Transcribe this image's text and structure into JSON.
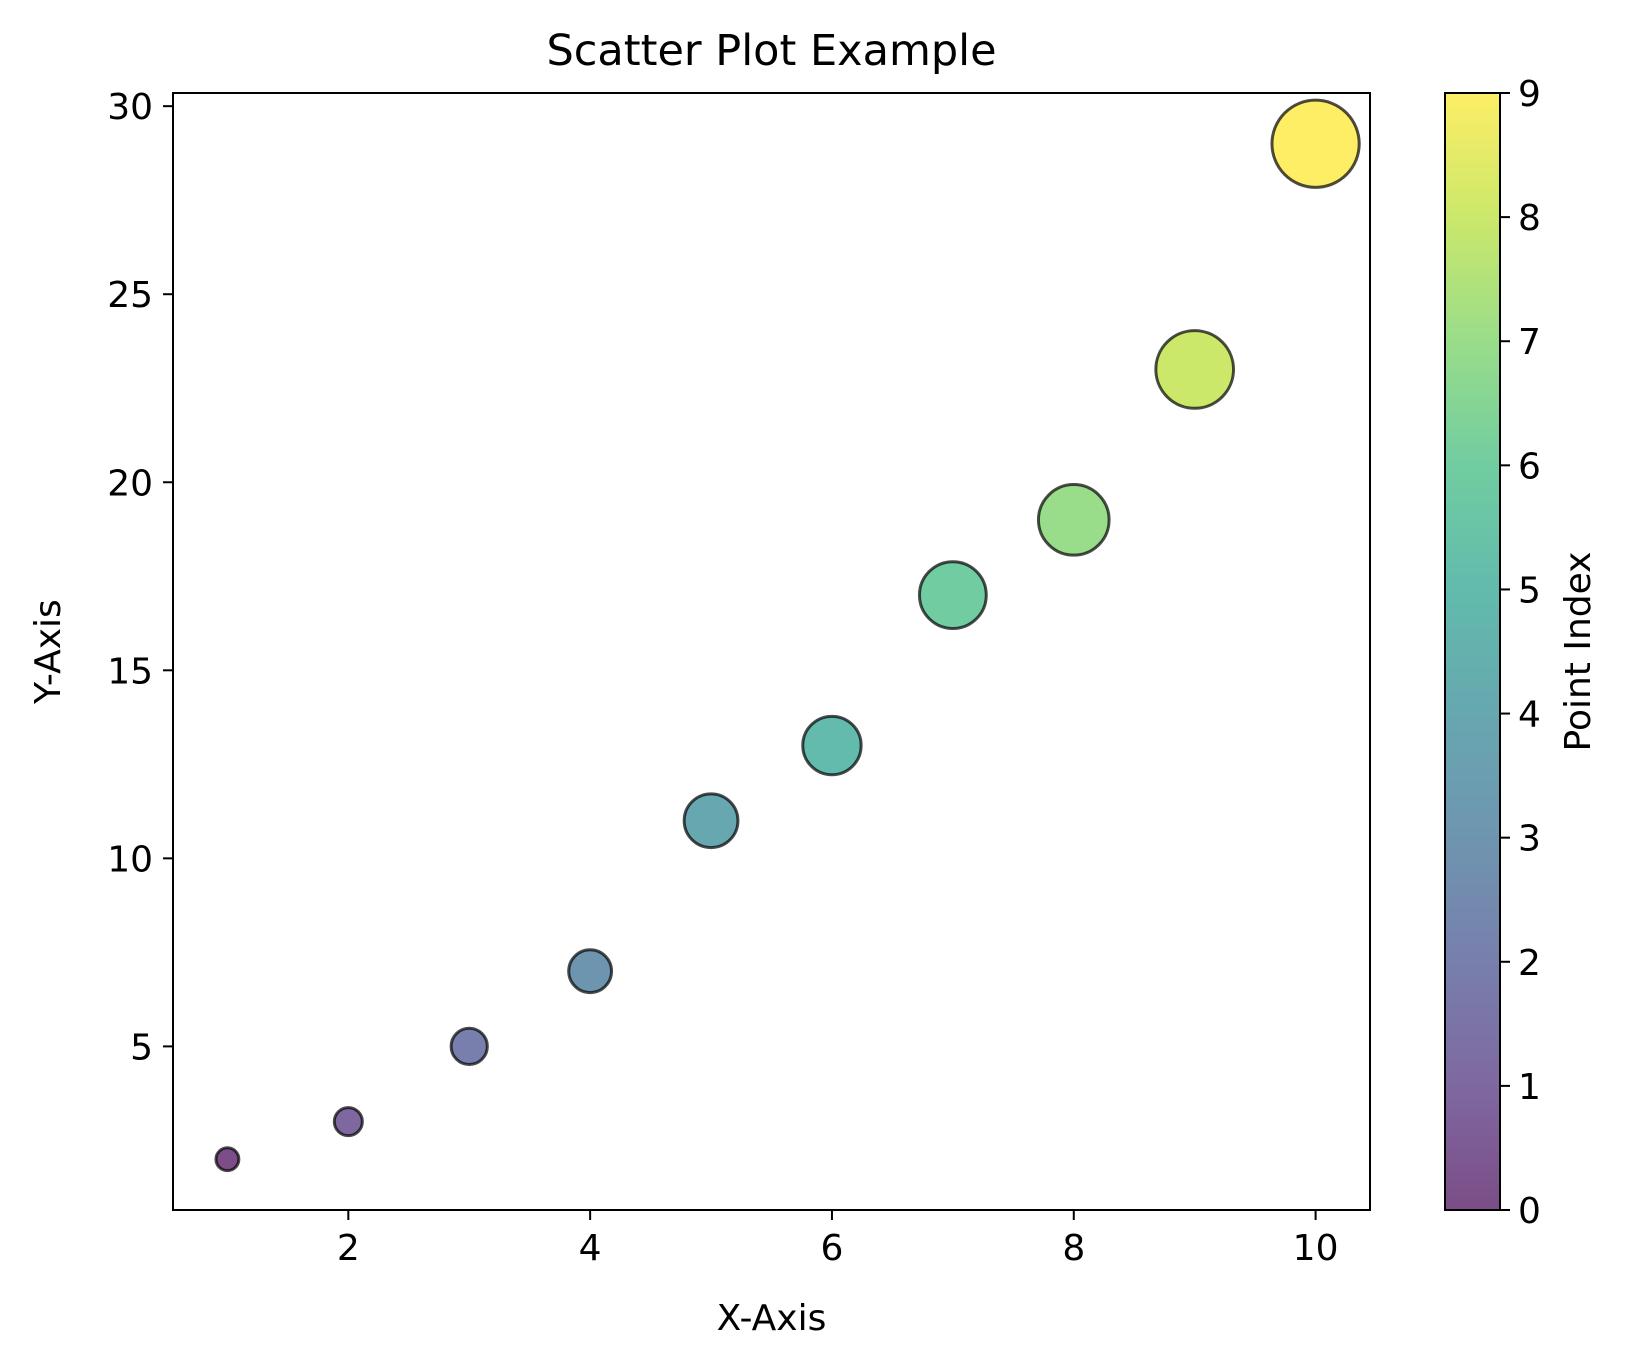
{
  "chart_data": {
    "type": "scatter",
    "title": "Scatter Plot Example",
    "xlabel": "X-Axis",
    "ylabel": "Y-Axis",
    "xlim": [
      0.55,
      10.45
    ],
    "ylim": [
      0.65,
      30.35
    ],
    "x_ticks": [
      2,
      4,
      6,
      8,
      10
    ],
    "y_ticks": [
      5,
      10,
      15,
      20,
      25,
      30
    ],
    "grid": false,
    "points": [
      {
        "x": 1,
        "y": 2,
        "index": 0
      },
      {
        "x": 2,
        "y": 3,
        "index": 1
      },
      {
        "x": 3,
        "y": 5,
        "index": 2
      },
      {
        "x": 4,
        "y": 7,
        "index": 3
      },
      {
        "x": 5,
        "y": 11,
        "index": 4
      },
      {
        "x": 6,
        "y": 13,
        "index": 5
      },
      {
        "x": 7,
        "y": 17,
        "index": 6
      },
      {
        "x": 8,
        "y": 19,
        "index": 7
      },
      {
        "x": 9,
        "y": 23,
        "index": 8
      },
      {
        "x": 10,
        "y": 29,
        "index": 9
      }
    ],
    "size_encoding": "proportional to y value",
    "marker_edge_color": "#000000",
    "marker_alpha": 0.7,
    "colormap": "viridis",
    "colorbar": {
      "label": "Point Index",
      "min": 0,
      "max": 9,
      "ticks": [
        0,
        1,
        2,
        3,
        4,
        5,
        6,
        7,
        8,
        9
      ]
    },
    "point_colors": [
      "#440154",
      "#482878",
      "#3e4989",
      "#31688e",
      "#26828e",
      "#1f9e89",
      "#35b779",
      "#6ece58",
      "#b5de2b",
      "#fde725"
    ]
  }
}
